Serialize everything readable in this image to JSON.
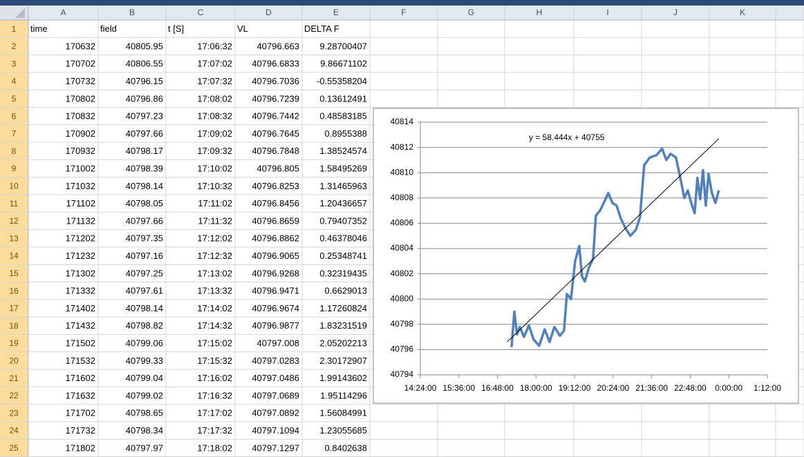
{
  "sheet": {
    "columns": [
      "A",
      "B",
      "C",
      "D",
      "E",
      "F",
      "G",
      "H",
      "I",
      "J",
      "K"
    ],
    "row_numbers": [
      "1",
      "2",
      "3",
      "4",
      "5",
      "6",
      "7",
      "8",
      "9",
      "10",
      "11",
      "12",
      "13",
      "14",
      "15",
      "16",
      "17",
      "18",
      "19",
      "20",
      "21",
      "22",
      "23",
      "24",
      "25"
    ],
    "rows": [
      [
        "time",
        "field",
        "t [S]",
        "VL",
        "DELTA F"
      ],
      [
        "170632",
        "40805.95",
        "17:06:32",
        "40796.663",
        "9.28700407"
      ],
      [
        "170702",
        "40806.55",
        "17:07:02",
        "40796.6833",
        "9.86671102"
      ],
      [
        "170732",
        "40796.15",
        "17:07:32",
        "40796.7036",
        "-0.55358204"
      ],
      [
        "170802",
        "40796.86",
        "17:08:02",
        "40796.7239",
        "0.13612491"
      ],
      [
        "170832",
        "40797.23",
        "17:08:32",
        "40796.7442",
        "0.48583185"
      ],
      [
        "170902",
        "40797.66",
        "17:09:02",
        "40796.7645",
        "0.8955388"
      ],
      [
        "170932",
        "40798.17",
        "17:09:32",
        "40796.7848",
        "1.38524574"
      ],
      [
        "171002",
        "40798.39",
        "17:10:02",
        "40796.805",
        "1.58495269"
      ],
      [
        "171032",
        "40798.14",
        "17:10:32",
        "40796.8253",
        "1.31465963"
      ],
      [
        "171102",
        "40798.05",
        "17:11:02",
        "40796.8456",
        "1.20436657"
      ],
      [
        "171132",
        "40797.66",
        "17:11:32",
        "40796.8659",
        "0.79407352"
      ],
      [
        "171202",
        "40797.35",
        "17:12:02",
        "40796.8862",
        "0.46378046"
      ],
      [
        "171232",
        "40797.16",
        "17:12:32",
        "40796.9065",
        "0.25348741"
      ],
      [
        "171302",
        "40797.25",
        "17:13:02",
        "40796.9268",
        "0.32319435"
      ],
      [
        "171332",
        "40797.61",
        "17:13:32",
        "40796.9471",
        "0.6629013"
      ],
      [
        "171402",
        "40798.14",
        "17:14:02",
        "40796.9674",
        "1.17260824"
      ],
      [
        "171432",
        "40798.82",
        "17:14:32",
        "40796.9877",
        "1.83231519"
      ],
      [
        "171502",
        "40799.06",
        "17:15:02",
        "40797.008",
        "2.05202213"
      ],
      [
        "171532",
        "40799.33",
        "17:15:32",
        "40797.0283",
        "2.30172907"
      ],
      [
        "171602",
        "40799.04",
        "17:16:02",
        "40797.0486",
        "1.99143602"
      ],
      [
        "171632",
        "40799.02",
        "17:16:32",
        "40797.0689",
        "1.95114296"
      ],
      [
        "171702",
        "40798.65",
        "17:17:02",
        "40797.0892",
        "1.56084991"
      ],
      [
        "171732",
        "40798.34",
        "17:17:32",
        "40797.1094",
        "1.23055685"
      ],
      [
        "171802",
        "40797.97",
        "17:18:02",
        "40797.1297",
        "0.8402638"
      ]
    ]
  },
  "chart_data": {
    "type": "line",
    "annotation": "y = 58.444x + 40755",
    "xlim": [
      0.6,
      1.05
    ],
    "xticks": [
      {
        "value": 0.6,
        "label": "14:24:00"
      },
      {
        "value": 0.65,
        "label": "15:36:00"
      },
      {
        "value": 0.7,
        "label": "16:48:00"
      },
      {
        "value": 0.75,
        "label": "18:00:00"
      },
      {
        "value": 0.8,
        "label": "19:12:00"
      },
      {
        "value": 0.85,
        "label": "20:24:00"
      },
      {
        "value": 0.9,
        "label": "21:36:00"
      },
      {
        "value": 0.95,
        "label": "22:48:00"
      },
      {
        "value": 1.0,
        "label": "0:00:00"
      },
      {
        "value": 1.05,
        "label": "1:12:00"
      }
    ],
    "ylim": [
      40794,
      40814
    ],
    "yticks": [
      40794,
      40796,
      40798,
      40800,
      40802,
      40804,
      40806,
      40808,
      40810,
      40812,
      40814
    ],
    "grid": true,
    "series": [
      {
        "color": "#4f81bd",
        "line_width": 3.5,
        "x": [
          0.7183,
          0.7219,
          0.7254,
          0.729,
          0.7344,
          0.7407,
          0.7469,
          0.7541,
          0.7613,
          0.7676,
          0.7738,
          0.781,
          0.7864,
          0.79,
          0.7953,
          0.8007,
          0.8061,
          0.8097,
          0.8133,
          0.8186,
          0.824,
          0.8276,
          0.833,
          0.8393,
          0.8437,
          0.8491,
          0.8545,
          0.8599,
          0.8661,
          0.8724,
          0.8796,
          0.8849,
          0.8903,
          0.8975,
          0.9064,
          0.9136,
          0.919,
          0.9244,
          0.9315,
          0.9378,
          0.9423,
          0.9468,
          0.9513,
          0.9557,
          0.9593,
          0.9629,
          0.9665,
          0.9701,
          0.9737,
          0.9781,
          0.9826,
          0.9871
        ],
        "values": [
          40796.2,
          40799.0,
          40797.2,
          40797.8,
          40797.0,
          40797.9,
          40796.8,
          40796.3,
          40797.6,
          40796.6,
          40797.8,
          40797.1,
          40797.5,
          40800.4,
          40800.0,
          40803.0,
          40804.2,
          40801.8,
          40801.4,
          40802.5,
          40803.2,
          40806.6,
          40807.0,
          40807.8,
          40808.4,
          40807.6,
          40807.4,
          40806.4,
          40805.6,
          40805.0,
          40805.5,
          40806.5,
          40810.6,
          40811.2,
          40811.4,
          40811.9,
          40811.0,
          40811.5,
          40811.2,
          40809.4,
          40808.0,
          40808.6,
          40807.6,
          40806.8,
          40809.6,
          40807.9,
          40810.2,
          40807.4,
          40809.9,
          40808.4,
          40807.6,
          40808.6
        ]
      },
      {
        "color": "#000000",
        "line_width": 1,
        "x": [
          0.7125,
          0.9871
        ],
        "values": [
          40796.6,
          40812.7
        ]
      }
    ]
  }
}
